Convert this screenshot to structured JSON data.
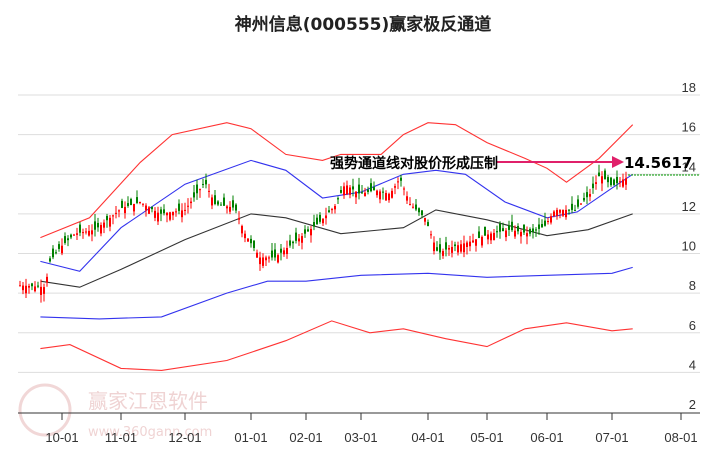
{
  "title": "神州信息(000555)赢家极反通道",
  "annotation": {
    "text": "强势通道线对股价形成压制",
    "price_label": "14.5617",
    "arrow_color": "#e0206a"
  },
  "watermark": {
    "name": "赢家江恩软件",
    "url": "www.360gann.com",
    "seal": "江赢恩家"
  },
  "colors": {
    "up": "#ff0000",
    "down": "#008000",
    "outer_band": "#ff3333",
    "inner_band": "#3333ee",
    "mid_line": "#333333",
    "grid": "#dddddd",
    "price_line": "#009900"
  },
  "chart_data": {
    "type": "candlestick",
    "title": "神州信息(000555)赢家极反通道",
    "xlabel": "",
    "ylabel": "",
    "ylim": [
      2,
      18
    ],
    "y_ticks": [
      2,
      4,
      6,
      8,
      10,
      12,
      14,
      16,
      18
    ],
    "x_ticks": [
      "10-01",
      "11-01",
      "12-01",
      "01-01",
      "02-01",
      "03-01",
      "04-01",
      "05-01",
      "06-01",
      "07-01",
      "08-01"
    ],
    "grid": true,
    "last_price": 14.5617,
    "annotation": "强势通道线对股价形成压制",
    "series": [
      {
        "name": "upper_outer_red",
        "points": [
          [
            "09-20",
            10.8
          ],
          [
            "10-15",
            11.8
          ],
          [
            "11-10",
            14.6
          ],
          [
            "11-25",
            16.0
          ],
          [
            "12-20",
            16.6
          ],
          [
            "01-01",
            16.3
          ],
          [
            "01-20",
            15.0
          ],
          [
            "02-10",
            14.7
          ],
          [
            "02-20",
            15.0
          ],
          [
            "03-10",
            15.0
          ],
          [
            "03-20",
            16.0
          ],
          [
            "04-01",
            16.6
          ],
          [
            "04-15",
            16.5
          ],
          [
            "05-01",
            15.6
          ],
          [
            "05-20",
            14.8
          ],
          [
            "06-01",
            14.3
          ],
          [
            "06-10",
            13.6
          ],
          [
            "06-25",
            14.8
          ],
          [
            "07-10",
            16.5
          ]
        ]
      },
      {
        "name": "upper_inner_blue",
        "points": [
          [
            "09-20",
            9.6
          ],
          [
            "10-10",
            9.1
          ],
          [
            "11-01",
            11.3
          ],
          [
            "12-01",
            13.5
          ],
          [
            "01-01",
            14.7
          ],
          [
            "01-20",
            14.2
          ],
          [
            "02-10",
            12.8
          ],
          [
            "03-01",
            13.1
          ],
          [
            "03-20",
            14.0
          ],
          [
            "04-05",
            14.2
          ],
          [
            "04-20",
            14.0
          ],
          [
            "05-10",
            12.6
          ],
          [
            "06-01",
            11.8
          ],
          [
            "06-15",
            12.1
          ],
          [
            "07-01",
            13.3
          ],
          [
            "07-10",
            14.0
          ]
        ]
      },
      {
        "name": "mid_black",
        "points": [
          [
            "09-20",
            8.6
          ],
          [
            "10-10",
            8.3
          ],
          [
            "11-01",
            9.2
          ],
          [
            "12-01",
            10.7
          ],
          [
            "01-01",
            12.0
          ],
          [
            "01-20",
            11.8
          ],
          [
            "02-20",
            11.0
          ],
          [
            "03-20",
            11.3
          ],
          [
            "04-05",
            12.2
          ],
          [
            "05-01",
            11.7
          ],
          [
            "06-01",
            10.9
          ],
          [
            "06-20",
            11.2
          ],
          [
            "07-10",
            12.0
          ]
        ]
      },
      {
        "name": "lower_inner_blue",
        "points": [
          [
            "09-20",
            6.8
          ],
          [
            "10-20",
            6.7
          ],
          [
            "11-20",
            6.8
          ],
          [
            "12-20",
            8.0
          ],
          [
            "01-10",
            8.6
          ],
          [
            "02-01",
            8.6
          ],
          [
            "03-01",
            8.9
          ],
          [
            "04-01",
            9.0
          ],
          [
            "05-01",
            8.8
          ],
          [
            "06-01",
            8.9
          ],
          [
            "07-01",
            9.0
          ],
          [
            "07-10",
            9.3
          ]
        ]
      },
      {
        "name": "lower_outer_red",
        "points": [
          [
            "09-20",
            5.2
          ],
          [
            "10-05",
            5.4
          ],
          [
            "11-01",
            4.2
          ],
          [
            "11-20",
            4.1
          ],
          [
            "12-20",
            4.6
          ],
          [
            "01-20",
            5.6
          ],
          [
            "02-15",
            6.6
          ],
          [
            "03-05",
            6.0
          ],
          [
            "03-20",
            6.2
          ],
          [
            "04-10",
            5.7
          ],
          [
            "05-01",
            5.3
          ],
          [
            "05-20",
            6.2
          ],
          [
            "06-10",
            6.5
          ],
          [
            "07-01",
            6.1
          ],
          [
            "07-10",
            6.2
          ]
        ]
      }
    ]
  }
}
